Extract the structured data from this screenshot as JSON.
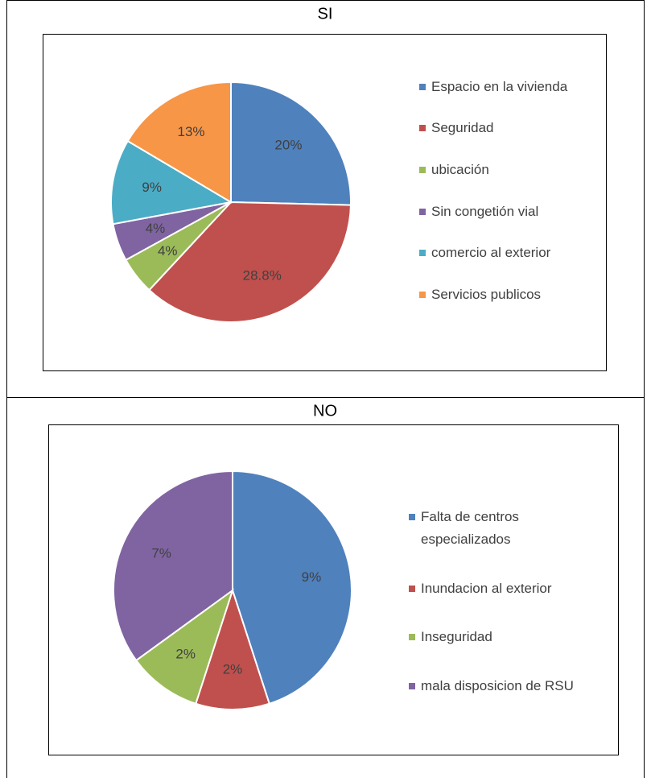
{
  "chart_data": [
    {
      "type": "pie",
      "title": "SI",
      "categories": [
        "Espacio en la vivienda",
        "Seguridad",
        "ubicación",
        "Sin congetión vial",
        "comercio al exterior",
        "Servicios publicos"
      ],
      "values": [
        20,
        28.8,
        4,
        4,
        9,
        13
      ],
      "value_labels": [
        "20%",
        "28.8%",
        "4%",
        "4%",
        "9%",
        "13%"
      ],
      "colors": [
        "#4f81bd",
        "#c0504d",
        "#9bbb59",
        "#8064a2",
        "#4bacc6",
        "#f79646"
      ],
      "legend": "right"
    },
    {
      "type": "pie",
      "title": "NO",
      "categories": [
        "Falta de centros especializados",
        "Inundacion al exterior",
        "Inseguridad",
        "mala disposicion de RSU"
      ],
      "values": [
        9,
        2,
        2,
        7
      ],
      "value_labels": [
        "9%",
        "2%",
        "2%",
        "7%"
      ],
      "colors": [
        "#4f81bd",
        "#c0504d",
        "#9bbb59",
        "#8064a2"
      ],
      "legend": "right"
    }
  ]
}
